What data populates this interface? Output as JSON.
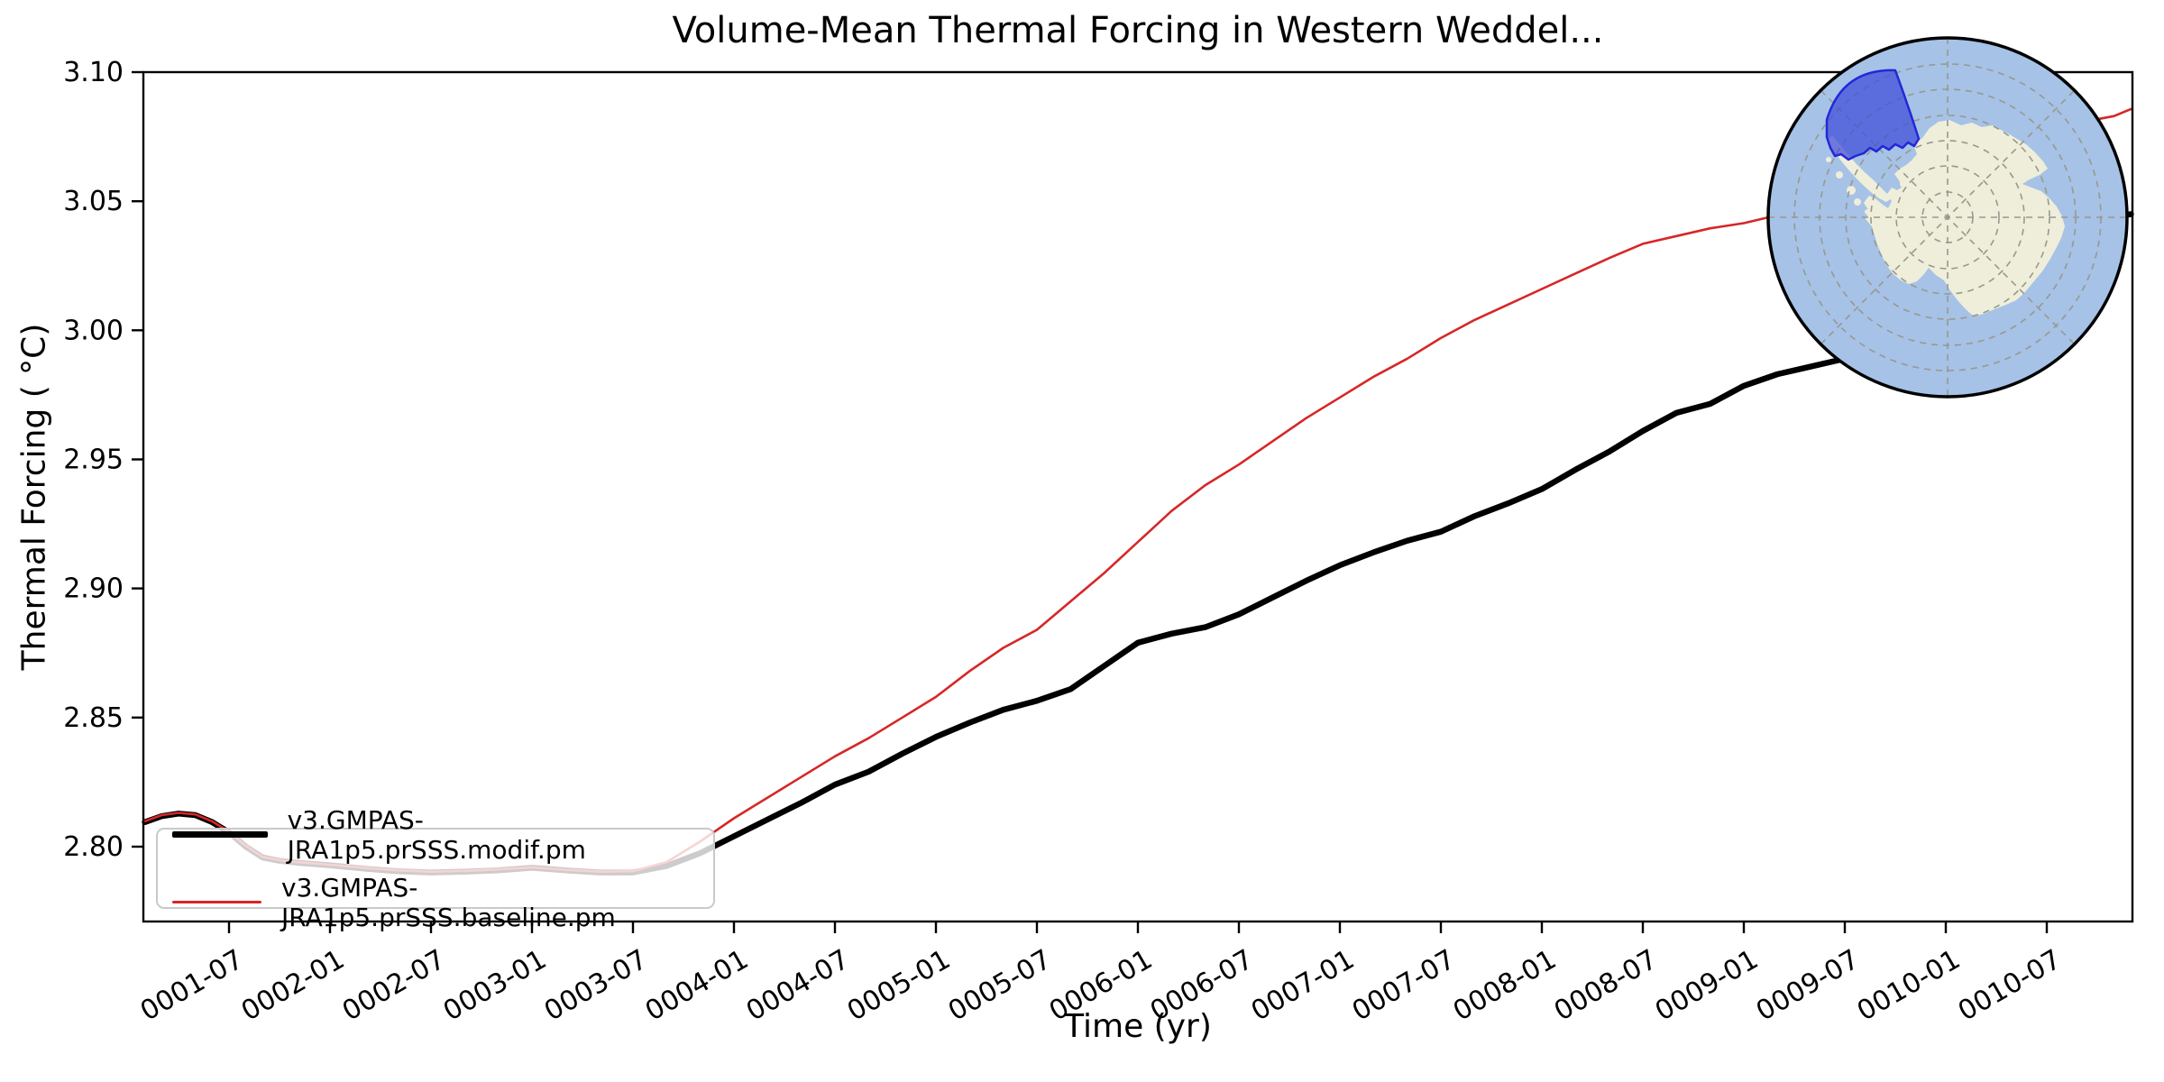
{
  "title": "Volume-Mean Thermal Forcing in Western Weddel...",
  "axes": {
    "xlabel": "Time (yr)",
    "ylabel": "Thermal Forcing ( °C)"
  },
  "legend": {
    "position": "lower left",
    "items": [
      {
        "label": "v3.GMPAS-JRA1p5.prSSS.modif.pm",
        "color": "#000000",
        "linewidth": 6.5
      },
      {
        "label": "v3.GMPAS-JRA1p5.prSSS.baseline.pm",
        "color": "#d62728",
        "linewidth": 2.6
      }
    ]
  },
  "chart_data": {
    "type": "line",
    "title": "Volume-Mean Thermal Forcing in Western Weddel...",
    "xlabel": "Time (yr)",
    "ylabel": "Thermal Forcing ( °C)",
    "grid": false,
    "legend_position": "lower left",
    "xlim": [
      1.076,
      10.924
    ],
    "ylim": [
      2.771,
      3.1
    ],
    "x_tick_labels": [
      "0001-07",
      "0002-01",
      "0002-07",
      "0003-01",
      "0003-07",
      "0004-01",
      "0004-07",
      "0005-01",
      "0005-07",
      "0006-01",
      "0006-07",
      "0007-01",
      "0007-07",
      "0008-01",
      "0008-07",
      "0009-01",
      "0009-07",
      "0010-01",
      "0010-07"
    ],
    "x_tick_rotation_deg": 30,
    "y_ticks": [
      2.8,
      2.85,
      2.9,
      2.95,
      3.0,
      3.05,
      3.1
    ],
    "series": [
      {
        "name": "v3.GMPAS-JRA1p5.prSSS.modif.pm",
        "color": "#000000",
        "linewidth": 6.5,
        "dates": [
          "0001-02",
          "0001-03",
          "0001-04",
          "0001-05",
          "0001-06",
          "0001-07",
          "0001-08",
          "0001-09",
          "0001-10",
          "0001-11",
          "0002-01",
          "0002-03",
          "0002-05",
          "0002-07",
          "0002-09",
          "0002-11",
          "0003-01",
          "0003-03",
          "0003-05",
          "0003-07",
          "0003-09",
          "0003-11",
          "0004-01",
          "0004-03",
          "0004-05",
          "0004-07",
          "0004-09",
          "0004-11",
          "0005-01",
          "0005-03",
          "0005-05",
          "0005-07",
          "0005-09",
          "0005-11",
          "0006-01",
          "0006-03",
          "0006-05",
          "0006-07",
          "0006-09",
          "0006-11",
          "0007-01",
          "0007-03",
          "0007-05",
          "0007-07",
          "0007-09",
          "0007-11",
          "0008-01",
          "0008-03",
          "0008-05",
          "0008-07",
          "0008-09",
          "0008-11",
          "0009-01",
          "0009-03",
          "0009-05",
          "0009-07",
          "0009-09",
          "0009-11",
          "0010-01",
          "0010-03",
          "0010-05",
          "0010-07",
          "0010-09",
          "0010-11",
          "0010-12"
        ],
        "values": [
          2.8095,
          2.8118,
          2.8128,
          2.8122,
          2.8095,
          2.8055,
          2.8,
          2.7958,
          2.7945,
          2.7938,
          2.7928,
          2.7915,
          2.7905,
          2.79,
          2.7903,
          2.7908,
          2.7918,
          2.7908,
          2.79,
          2.79,
          2.7925,
          2.7975,
          2.804,
          2.8105,
          2.817,
          2.824,
          2.829,
          2.836,
          2.8425,
          2.848,
          2.853,
          2.8565,
          2.861,
          2.87,
          2.879,
          2.8825,
          2.885,
          2.89,
          2.8965,
          2.903,
          2.909,
          2.914,
          2.9185,
          2.922,
          2.928,
          2.933,
          2.9385,
          2.946,
          2.953,
          2.961,
          2.968,
          2.9715,
          2.9785,
          2.983,
          2.986,
          2.989,
          2.995,
          3.003,
          3.012,
          3.022,
          3.03,
          3.036,
          3.041,
          3.044,
          3.045
        ]
      },
      {
        "name": "v3.GMPAS-JRA1p5.prSSS.baseline.pm",
        "color": "#d62728",
        "linewidth": 2.6,
        "dates": [
          "0001-02",
          "0001-03",
          "0001-04",
          "0001-05",
          "0001-06",
          "0001-07",
          "0001-08",
          "0001-09",
          "0001-10",
          "0001-11",
          "0002-01",
          "0002-03",
          "0002-05",
          "0002-07",
          "0002-09",
          "0002-11",
          "0003-01",
          "0003-03",
          "0003-05",
          "0003-07",
          "0003-09",
          "0003-11",
          "0004-01",
          "0004-03",
          "0004-05",
          "0004-07",
          "0004-09",
          "0004-11",
          "0005-01",
          "0005-03",
          "0005-05",
          "0005-07",
          "0005-09",
          "0005-11",
          "0006-01",
          "0006-03",
          "0006-05",
          "0006-07",
          "0006-09",
          "0006-11",
          "0007-01",
          "0007-03",
          "0007-05",
          "0007-07",
          "0007-09",
          "0007-11",
          "0008-01",
          "0008-03",
          "0008-05",
          "0008-07",
          "0008-09",
          "0008-11",
          "0009-01",
          "0009-03",
          "0009-05",
          "0009-07",
          "0009-09",
          "0009-11",
          "0010-01",
          "0010-03",
          "0010-05",
          "0010-07",
          "0010-09",
          "0010-11",
          "0010-12"
        ],
        "values": [
          2.8098,
          2.8122,
          2.8131,
          2.8125,
          2.8098,
          2.8058,
          2.8003,
          2.796,
          2.7948,
          2.794,
          2.793,
          2.7918,
          2.7908,
          2.7903,
          2.7906,
          2.7912,
          2.792,
          2.791,
          2.7903,
          2.7905,
          2.794,
          2.802,
          2.811,
          2.819,
          2.827,
          2.835,
          2.842,
          2.85,
          2.858,
          2.868,
          2.877,
          2.884,
          2.895,
          2.906,
          2.918,
          2.93,
          2.94,
          2.948,
          2.957,
          2.966,
          2.974,
          2.982,
          2.989,
          2.997,
          3.004,
          3.01,
          3.016,
          3.022,
          3.028,
          3.0335,
          3.0365,
          3.0395,
          3.0415,
          3.0446,
          3.049,
          3.054,
          3.059,
          3.064,
          3.068,
          3.072,
          3.0755,
          3.0785,
          3.0805,
          3.083,
          3.0857
        ]
      }
    ]
  },
  "inset_map": {
    "ocean_color": "#a6c2e6",
    "land_color": "#efeeda",
    "region_fill": "#3f4cd8",
    "region_border": "#2228d8",
    "graticule_color": "#98988f",
    "border_color": "#000000"
  }
}
